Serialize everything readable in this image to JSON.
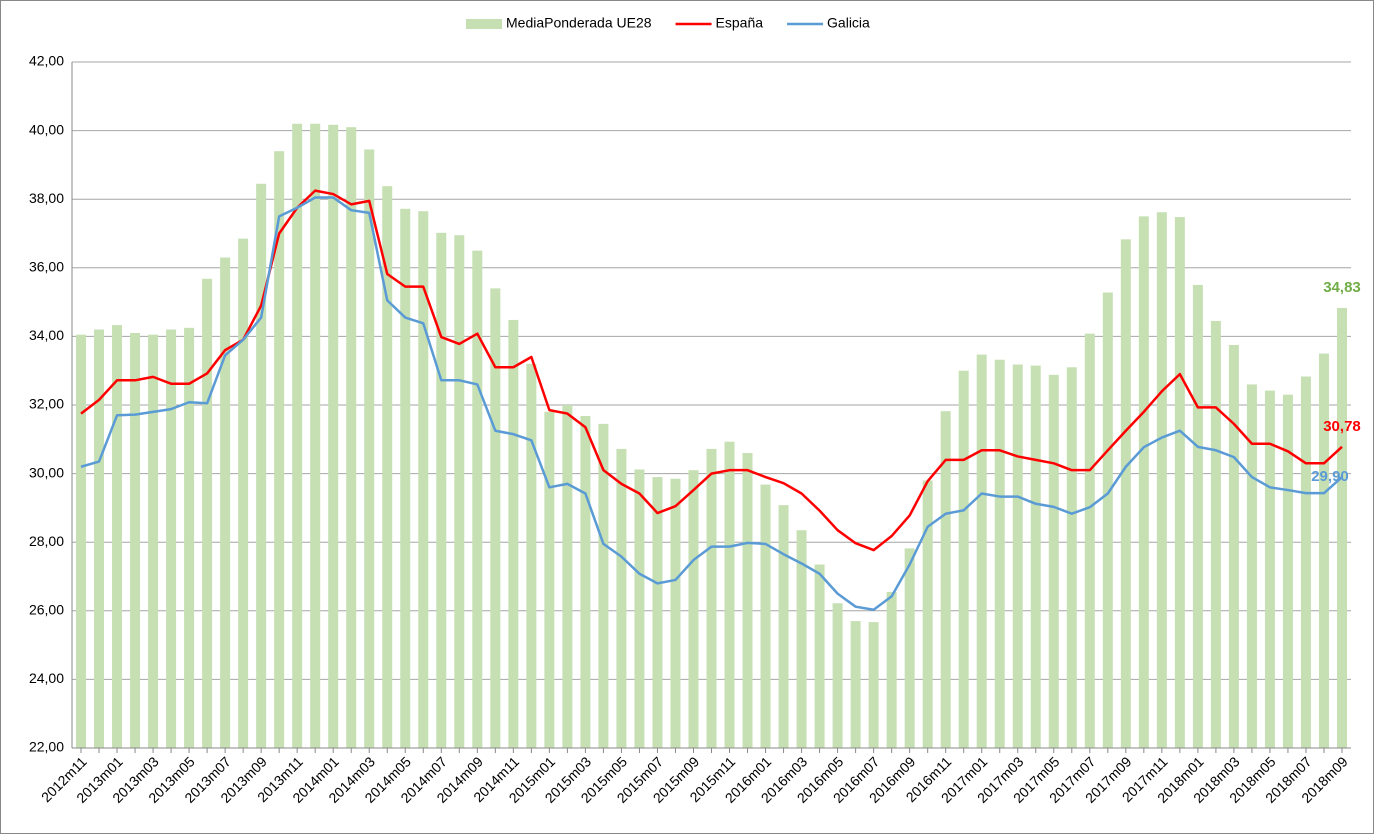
{
  "chart_data": {
    "type": "bar",
    "categories": [
      "2012m11",
      null,
      "2013m01",
      null,
      "2013m03",
      null,
      "2013m05",
      null,
      "2013m07",
      null,
      "2013m09",
      null,
      "2013m11",
      null,
      "2014m01",
      null,
      "2014m03",
      null,
      "2014m05",
      null,
      "2014m07",
      null,
      "2014m09",
      null,
      "2014m11",
      null,
      "2015m01",
      null,
      "2015m03",
      null,
      "2015m05",
      null,
      "2015m07",
      null,
      "2015m09",
      null,
      "2015m11",
      null,
      "2016m01",
      null,
      "2016m03",
      null,
      "2016m05",
      null,
      "2016m07",
      null,
      "2016m09",
      null,
      "2016m11",
      null,
      "2017m01",
      null,
      "2017m03",
      null,
      "2017m05",
      null,
      "2017m07",
      null,
      "2017m09",
      null,
      "2017m11",
      null,
      "2018m01",
      null,
      "2018m03",
      null,
      "2018m05",
      null,
      "2018m07",
      null,
      "2018m09"
    ],
    "series": [
      {
        "name": "MediaPonderada UE28",
        "type": "bar",
        "color": "#c6e0b4",
        "label_color": "#70ad47",
        "values": [
          34.05,
          34.2,
          34.33,
          34.1,
          34.05,
          34.2,
          34.25,
          35.68,
          36.3,
          36.85,
          38.45,
          39.4,
          40.2,
          40.2,
          40.17,
          40.1,
          39.45,
          38.38,
          37.72,
          37.65,
          37.02,
          36.95,
          36.5,
          35.4,
          34.48,
          33.2,
          31.8,
          32.0,
          31.68,
          31.45,
          30.72,
          30.12,
          29.9,
          29.85,
          30.1,
          30.72,
          30.93,
          30.6,
          29.68,
          29.08,
          28.35,
          27.35,
          26.22,
          25.7,
          25.67,
          26.55,
          27.82,
          29.8,
          31.82,
          33.0,
          33.47,
          33.32,
          33.18,
          33.15,
          32.88,
          33.1,
          34.08,
          35.28,
          36.83,
          37.5,
          37.62,
          37.48,
          35.5,
          34.45,
          33.75,
          32.6,
          32.42,
          32.3,
          32.83,
          33.5,
          34.83
        ],
        "value_labels": [
          null,
          null,
          null,
          null,
          null,
          null,
          null,
          null,
          null,
          null,
          null,
          null,
          null,
          null,
          null,
          null,
          null,
          null,
          null,
          null,
          null,
          null,
          null,
          null,
          null,
          null,
          null,
          null,
          null,
          null,
          null,
          null,
          null,
          null,
          null,
          null,
          null,
          null,
          null,
          null,
          null,
          null,
          null,
          null,
          null,
          null,
          null,
          null,
          null,
          null,
          null,
          null,
          null,
          null,
          null,
          null,
          null,
          null,
          null,
          null,
          null,
          null,
          null,
          null,
          null,
          null,
          null,
          null,
          null,
          null,
          "34,83"
        ]
      },
      {
        "name": "España",
        "type": "line",
        "color": "#ff0000",
        "label_color": "#ff0000",
        "values": [
          31.75,
          32.15,
          32.72,
          32.72,
          32.82,
          32.62,
          32.62,
          32.92,
          33.6,
          33.9,
          34.9,
          37.0,
          37.75,
          38.25,
          38.15,
          37.85,
          37.95,
          35.82,
          35.45,
          35.45,
          33.98,
          33.78,
          34.08,
          33.1,
          33.1,
          33.4,
          31.85,
          31.75,
          31.35,
          30.1,
          29.7,
          29.42,
          28.85,
          29.05,
          29.52,
          30.0,
          30.1,
          30.1,
          29.9,
          29.72,
          29.42,
          28.92,
          28.35,
          27.97,
          27.77,
          28.18,
          28.78,
          29.78,
          30.4,
          30.4,
          30.68,
          30.68,
          30.5,
          30.4,
          30.3,
          30.1,
          30.1,
          30.68,
          31.25,
          31.8,
          32.4,
          32.9,
          31.93,
          31.93,
          31.45,
          30.87,
          30.87,
          30.65,
          30.3,
          30.3,
          30.78
        ],
        "value_labels": [
          null,
          null,
          null,
          null,
          null,
          null,
          null,
          null,
          null,
          null,
          null,
          null,
          null,
          null,
          null,
          null,
          null,
          null,
          null,
          null,
          null,
          null,
          null,
          null,
          null,
          null,
          null,
          null,
          null,
          null,
          null,
          null,
          null,
          null,
          null,
          null,
          null,
          null,
          null,
          null,
          null,
          null,
          null,
          null,
          null,
          null,
          null,
          null,
          null,
          null,
          null,
          null,
          null,
          null,
          null,
          null,
          null,
          null,
          null,
          null,
          null,
          null,
          null,
          null,
          null,
          null,
          null,
          null,
          null,
          null,
          "30,78"
        ]
      },
      {
        "name": "Galicia",
        "type": "line",
        "color": "#5b9bd5",
        "label_color": "#5b9bd5",
        "values": [
          30.2,
          30.35,
          31.7,
          31.72,
          31.8,
          31.88,
          32.08,
          32.05,
          33.45,
          33.9,
          34.55,
          37.5,
          37.75,
          38.05,
          38.05,
          37.68,
          37.6,
          35.05,
          34.55,
          34.38,
          32.72,
          32.72,
          32.6,
          31.25,
          31.15,
          30.97,
          29.6,
          29.7,
          29.42,
          27.95,
          27.58,
          27.08,
          26.8,
          26.9,
          27.48,
          27.87,
          27.87,
          27.98,
          27.95,
          27.65,
          27.38,
          27.08,
          26.5,
          26.12,
          26.03,
          26.42,
          27.35,
          28.45,
          28.83,
          28.93,
          29.42,
          29.33,
          29.33,
          29.12,
          29.03,
          28.83,
          29.02,
          29.42,
          30.2,
          30.77,
          31.05,
          31.25,
          30.78,
          30.68,
          30.48,
          29.9,
          29.6,
          29.52,
          29.43,
          29.43,
          29.9
        ],
        "value_labels": [
          null,
          null,
          null,
          null,
          null,
          null,
          null,
          null,
          null,
          null,
          null,
          null,
          null,
          null,
          null,
          null,
          null,
          null,
          null,
          null,
          null,
          null,
          null,
          null,
          null,
          null,
          null,
          null,
          null,
          null,
          null,
          null,
          null,
          null,
          null,
          null,
          null,
          null,
          null,
          null,
          null,
          null,
          null,
          null,
          null,
          null,
          null,
          null,
          null,
          null,
          null,
          null,
          null,
          null,
          null,
          null,
          null,
          null,
          null,
          null,
          null,
          null,
          null,
          null,
          null,
          null,
          null,
          null,
          null,
          null,
          "29,90"
        ]
      }
    ],
    "ylim": [
      22,
      42
    ],
    "yticks": [
      {
        "value": 22,
        "label": "22,00"
      },
      {
        "value": 24,
        "label": "24,00"
      },
      {
        "value": 26,
        "label": "26,00"
      },
      {
        "value": 28,
        "label": "28,00"
      },
      {
        "value": 30,
        "label": "30,00"
      },
      {
        "value": 32,
        "label": "32,00"
      },
      {
        "value": 34,
        "label": "34,00"
      },
      {
        "value": 36,
        "label": "36,00"
      },
      {
        "value": 38,
        "label": "38,00"
      },
      {
        "value": 40,
        "label": "40,00"
      },
      {
        "value": 42,
        "label": "42,00"
      }
    ],
    "grid": true,
    "legend": "top"
  }
}
